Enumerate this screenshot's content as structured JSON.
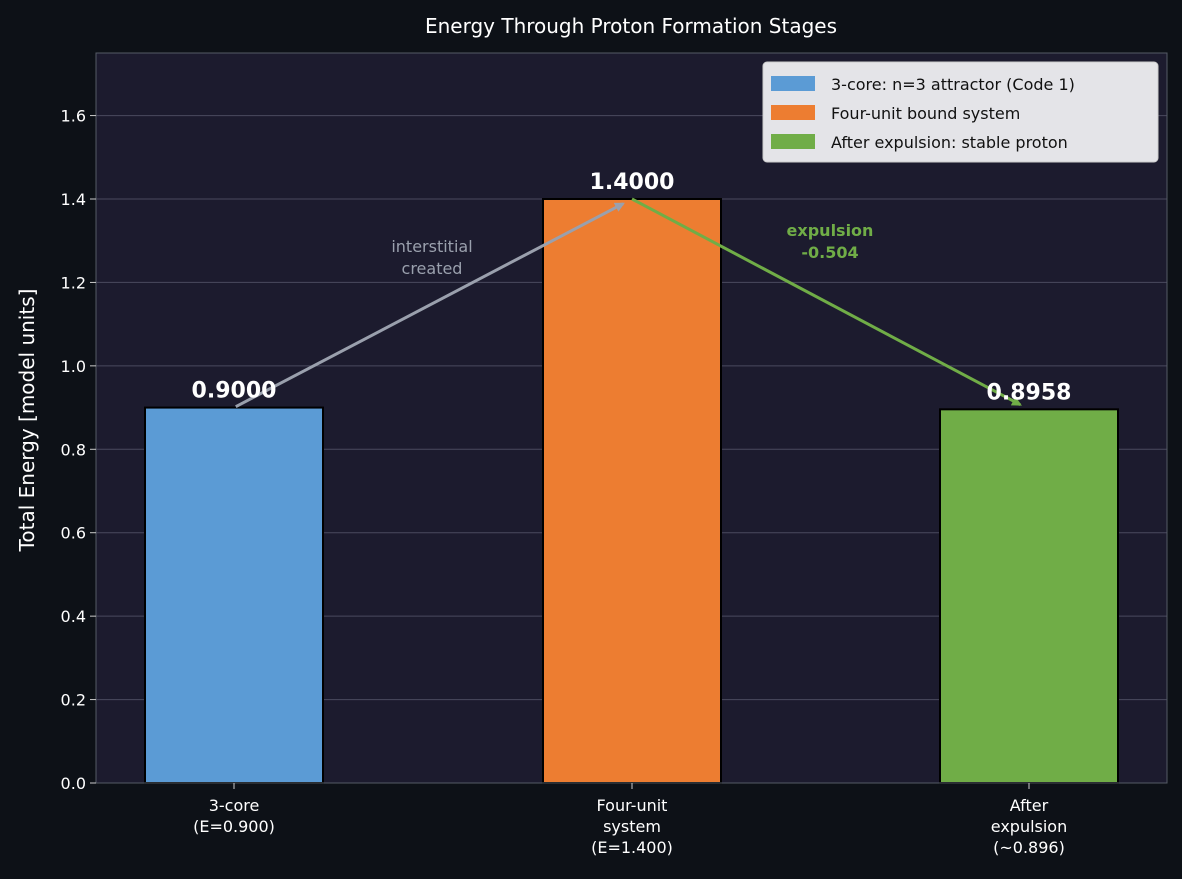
{
  "chart_data": {
    "type": "bar",
    "title": "Energy Through Proton Formation Stages",
    "ylabel": "Total Energy  [model units]",
    "xlabel": "",
    "ylim": [
      0,
      1.75
    ],
    "yticks": [
      "0.0",
      "0.2",
      "0.4",
      "0.6",
      "0.8",
      "1.0",
      "1.2",
      "1.4",
      "1.6"
    ],
    "ytick_values": [
      0,
      0.2,
      0.4,
      0.6,
      0.8,
      1.0,
      1.2,
      1.4,
      1.6
    ],
    "grid": true,
    "legend_position": "top-right",
    "categories": [
      [
        "3-core",
        "(E=0.900)"
      ],
      [
        "Four-unit",
        "system",
        "(E=1.400)"
      ],
      [
        "After",
        "expulsion",
        "(~0.896)"
      ]
    ],
    "values": [
      0.9,
      1.4,
      0.8958
    ],
    "value_labels": [
      "0.9000",
      "1.4000",
      "0.8958"
    ],
    "colors": [
      "#5b9bd5",
      "#ed7d31",
      "#70ad47"
    ],
    "legend": [
      "3-core: n=3 attractor (Code 1)",
      "Four-unit bound system",
      "After expulsion: stable proton"
    ],
    "annotations": [
      {
        "lines": [
          "interstitial",
          "created"
        ],
        "color": "#9aa0ad",
        "from": [
          0,
          0.9
        ],
        "to": [
          1,
          1.4
        ]
      },
      {
        "lines": [
          "expulsion",
          "-0.504"
        ],
        "color": "#70ad47",
        "from": [
          1,
          1.4
        ],
        "to": [
          2,
          0.8958
        ]
      }
    ],
    "background": "#1c1b2e",
    "figure_background": "#0d1117"
  }
}
